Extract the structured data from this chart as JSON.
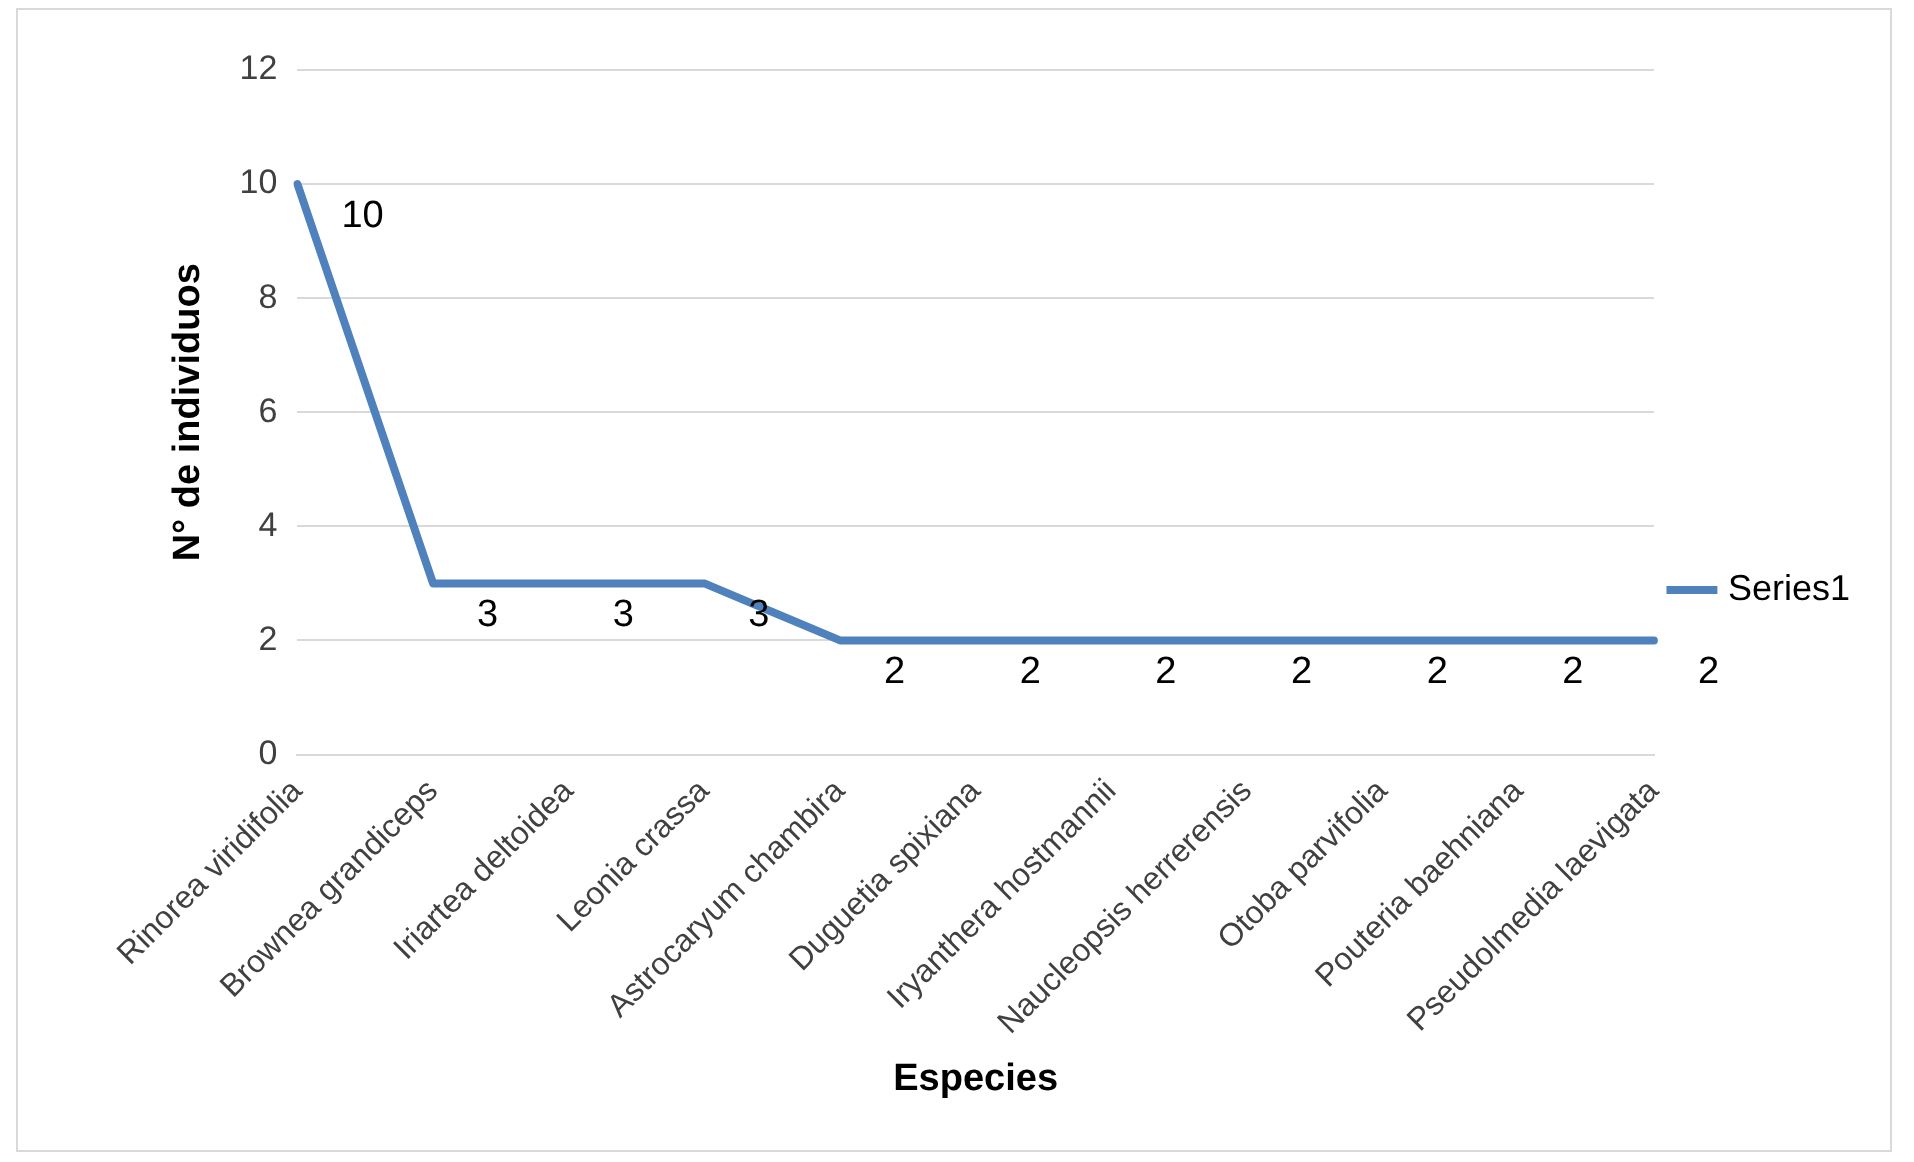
{
  "chart_data": {
    "type": "line",
    "xlabel": "Especies",
    "ylabel": "N° de individuos",
    "categories": [
      "Rinorea viridifolia",
      "Brownea grandiceps",
      "Iriartea deltoidea",
      "Leonia crassa",
      "Astrocaryum chambira",
      "Duguetia spixiana",
      "Iryanthera hostmannii",
      "Naucleopsis herrerensis",
      "Otoba parvifolia",
      "Pouteria baehniana",
      "Pseudolmedia laevigata"
    ],
    "series": [
      {
        "name": "Series1",
        "color": "#4f81bd",
        "values": [
          10,
          3,
          3,
          3,
          2,
          2,
          2,
          2,
          2,
          2,
          2
        ]
      }
    ],
    "ylim": [
      0,
      12
    ],
    "yticks": [
      0,
      2,
      4,
      6,
      8,
      10,
      12
    ],
    "grid": "y",
    "legend": "right",
    "data_labels": true,
    "marker": "none",
    "line_style": "solid"
  }
}
